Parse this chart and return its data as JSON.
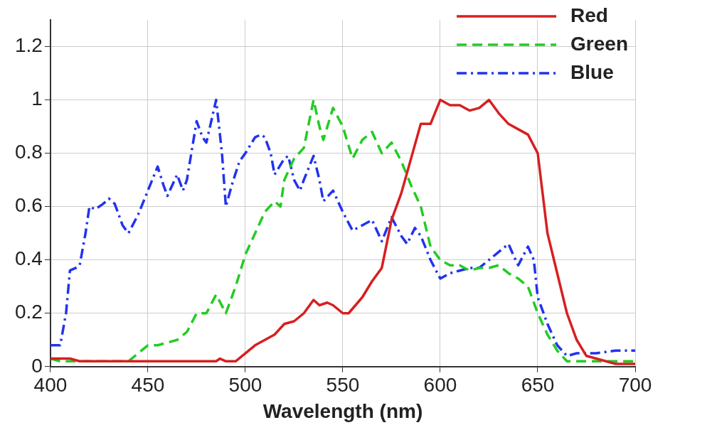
{
  "chart_data": {
    "type": "line",
    "xlabel": "Wavelength (nm)",
    "xlim": [
      400,
      700
    ],
    "xticks": [
      400,
      450,
      500,
      550,
      600,
      650,
      700
    ],
    "ylim": [
      0,
      1.3
    ],
    "yticks": [
      0,
      {
        "value": 0.2,
        "label": "0.2"
      },
      {
        "value": 0.4,
        "label": "0.4"
      },
      {
        "value": 0.6,
        "label": "0.6"
      },
      {
        "value": 0.8,
        "label": "0.8"
      },
      1,
      {
        "value": 1.2,
        "label": "1.2"
      }
    ],
    "grid": true,
    "legend": "top right",
    "marker": "none",
    "series": [
      {
        "name": "Red",
        "color": "#d62020",
        "line_style": "solid",
        "x": [
          400,
          410,
          415,
          485,
          487,
          490,
          495,
          500,
          505,
          510,
          515,
          520,
          525,
          530,
          535,
          538,
          542,
          545,
          550,
          553,
          560,
          565,
          570,
          575,
          580,
          585,
          590,
          595,
          600,
          605,
          610,
          615,
          620,
          625,
          630,
          635,
          640,
          645,
          650,
          655,
          660,
          665,
          670,
          675,
          680,
          685,
          690,
          700
        ],
        "values": [
          0.03,
          0.03,
          0.02,
          0.02,
          0.03,
          0.02,
          0.02,
          0.05,
          0.08,
          0.1,
          0.12,
          0.16,
          0.17,
          0.2,
          0.25,
          0.23,
          0.24,
          0.23,
          0.2,
          0.2,
          0.26,
          0.32,
          0.37,
          0.55,
          0.65,
          0.78,
          0.91,
          0.91,
          1.0,
          0.98,
          0.98,
          0.96,
          0.97,
          1.0,
          0.95,
          0.91,
          0.89,
          0.87,
          0.8,
          0.5,
          0.35,
          0.2,
          0.1,
          0.04,
          0.03,
          0.02,
          0.01,
          0.01
        ]
      },
      {
        "name": "Green",
        "color": "#22cc22",
        "line_style": "dashed",
        "x": [
          400,
          405,
          410,
          440,
          445,
          450,
          455,
          460,
          465,
          470,
          475,
          480,
          485,
          490,
          495,
          500,
          505,
          510,
          515,
          518,
          520,
          525,
          530,
          535,
          538,
          540,
          545,
          550,
          555,
          560,
          565,
          570,
          575,
          580,
          585,
          590,
          595,
          600,
          605,
          610,
          615,
          620,
          625,
          630,
          635,
          640,
          645,
          650,
          655,
          660,
          665,
          700
        ],
        "values": [
          0.03,
          0.02,
          0.02,
          0.02,
          0.05,
          0.08,
          0.08,
          0.09,
          0.1,
          0.13,
          0.2,
          0.2,
          0.27,
          0.2,
          0.3,
          0.42,
          0.5,
          0.58,
          0.62,
          0.6,
          0.7,
          0.78,
          0.82,
          1.0,
          0.9,
          0.85,
          0.97,
          0.9,
          0.78,
          0.85,
          0.88,
          0.8,
          0.84,
          0.77,
          0.68,
          0.6,
          0.45,
          0.4,
          0.38,
          0.38,
          0.36,
          0.37,
          0.37,
          0.38,
          0.35,
          0.33,
          0.3,
          0.2,
          0.12,
          0.06,
          0.02,
          0.02
        ]
      },
      {
        "name": "Blue",
        "color": "#2233ee",
        "line_style": "dashdot",
        "x": [
          400,
          405,
          408,
          410,
          413,
          415,
          418,
          420,
          423,
          427,
          430,
          433,
          437,
          440,
          445,
          450,
          455,
          458,
          460,
          465,
          468,
          470,
          475,
          478,
          480,
          485,
          488,
          490,
          493,
          497,
          500,
          505,
          508,
          510,
          513,
          515,
          520,
          522,
          525,
          528,
          530,
          535,
          538,
          540,
          545,
          550,
          555,
          560,
          565,
          570,
          575,
          580,
          583,
          587,
          590,
          595,
          600,
          605,
          610,
          615,
          620,
          625,
          630,
          635,
          638,
          640,
          645,
          648,
          650,
          655,
          660,
          665,
          670,
          680,
          690,
          700
        ],
        "values": [
          0.08,
          0.08,
          0.2,
          0.36,
          0.37,
          0.38,
          0.5,
          0.6,
          0.59,
          0.61,
          0.63,
          0.61,
          0.53,
          0.5,
          0.57,
          0.66,
          0.75,
          0.68,
          0.64,
          0.72,
          0.66,
          0.7,
          0.92,
          0.86,
          0.84,
          1.0,
          0.8,
          0.6,
          0.68,
          0.77,
          0.8,
          0.86,
          0.87,
          0.86,
          0.8,
          0.72,
          0.78,
          0.79,
          0.7,
          0.66,
          0.7,
          0.79,
          0.7,
          0.62,
          0.66,
          0.58,
          0.51,
          0.53,
          0.55,
          0.47,
          0.56,
          0.49,
          0.46,
          0.52,
          0.49,
          0.4,
          0.33,
          0.35,
          0.36,
          0.37,
          0.37,
          0.4,
          0.43,
          0.46,
          0.41,
          0.38,
          0.45,
          0.4,
          0.26,
          0.16,
          0.08,
          0.04,
          0.05,
          0.05,
          0.06,
          0.06
        ]
      }
    ]
  }
}
